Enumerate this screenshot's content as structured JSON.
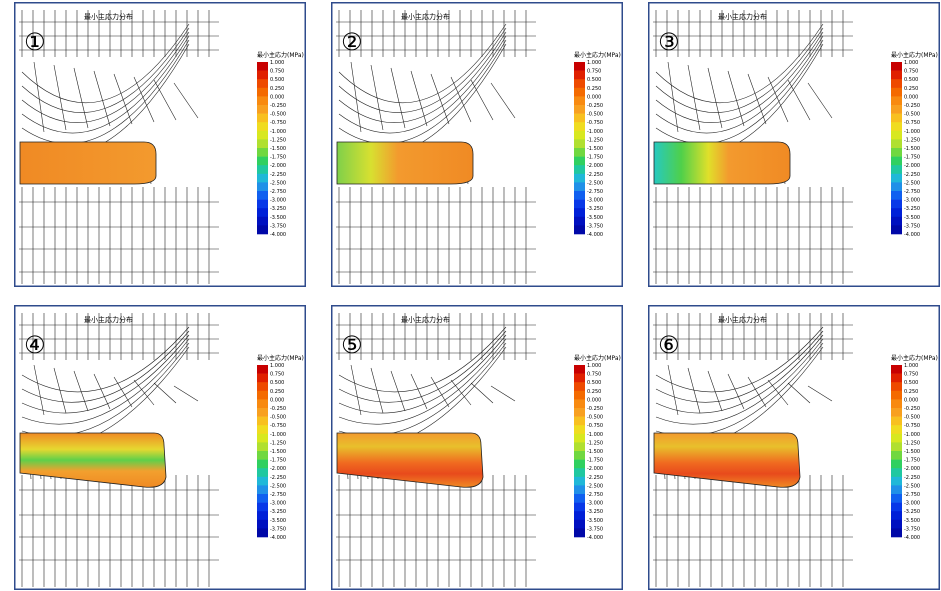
{
  "panels": [
    {
      "label": "①",
      "title": "最小主応力分布"
    },
    {
      "label": "②",
      "title": "最小主応力分布"
    },
    {
      "label": "③",
      "title": "最小主応力分布"
    },
    {
      "label": "④",
      "title": "最小主応力分布"
    },
    {
      "label": "⑤",
      "title": "最小主応力分布"
    },
    {
      "label": "⑥",
      "title": "最小主応力分布"
    }
  ],
  "colorbar": {
    "title": "最小主応力(MPa)",
    "labels": [
      "1.000",
      "0.750",
      "0.500",
      "0.250",
      "0.000",
      "-0.250",
      "-0.500",
      "-0.750",
      "-1.000",
      "-1.250",
      "-1.500",
      "-1.750",
      "-2.000",
      "-2.250",
      "-2.500",
      "-2.750",
      "-3.000",
      "-3.250",
      "-3.500",
      "-3.750",
      "-4.000"
    ]
  }
}
